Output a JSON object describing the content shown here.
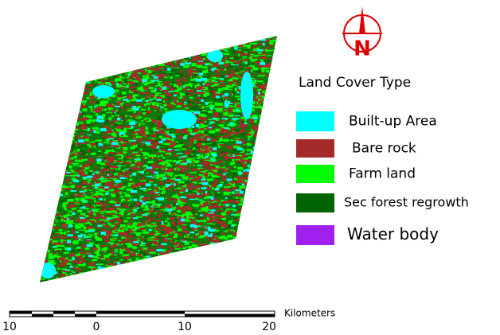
{
  "north_arrow": {
    "label": "N"
  },
  "legend": {
    "title": "Land Cover Type",
    "items": [
      {
        "label": "Built-up Area",
        "color": "#00ffff"
      },
      {
        "label": "Bare rock",
        "color": "#a52a2a"
      },
      {
        "label": "Farm land",
        "color": "#00ff00"
      },
      {
        "label": "Sec forest regrowth",
        "color": "#006400"
      },
      {
        "label": "Water body",
        "color": "#a020f0"
      }
    ]
  },
  "scale_bar": {
    "labels": [
      "10",
      "0",
      "10",
      "20"
    ],
    "unit": "Kilometers"
  }
}
